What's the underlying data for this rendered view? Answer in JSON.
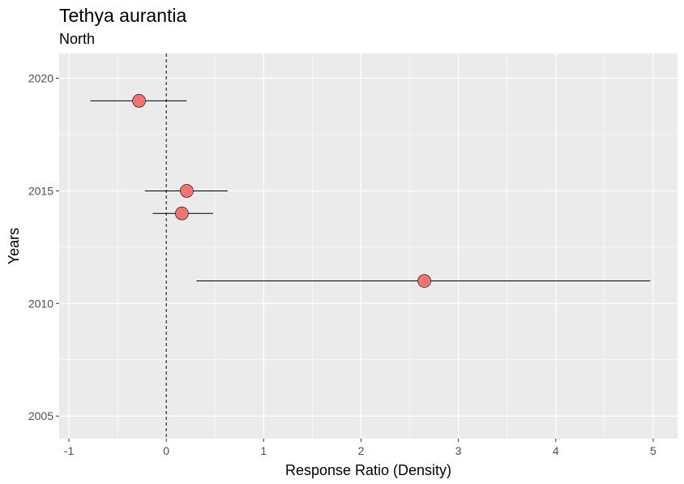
{
  "chart_data": {
    "type": "scatter",
    "title": "Tethya aurantia",
    "subtitle": "North",
    "xlabel": "Response Ratio (Density)",
    "ylabel": "Years",
    "xlim": [
      -1.1,
      5.25
    ],
    "ylim": [
      2004.0,
      2021.1
    ],
    "x_ticks": [
      -1,
      0,
      1,
      2,
      3,
      4,
      5
    ],
    "y_ticks": [
      2005,
      2010,
      2015,
      2020
    ],
    "reference_line_x": 0,
    "grid": true,
    "points": [
      {
        "year": 2019,
        "x": -0.28,
        "low": -0.78,
        "high": 0.21
      },
      {
        "year": 2015,
        "x": 0.21,
        "low": -0.22,
        "high": 0.63
      },
      {
        "year": 2014,
        "x": 0.16,
        "low": -0.14,
        "high": 0.48
      },
      {
        "year": 2011,
        "x": 2.65,
        "low": 0.31,
        "high": 4.97
      }
    ],
    "colors": {
      "panel": "#ebebeb",
      "grid": "#ffffff",
      "point_fill": "#f07470",
      "point_stroke": "#000000"
    }
  }
}
